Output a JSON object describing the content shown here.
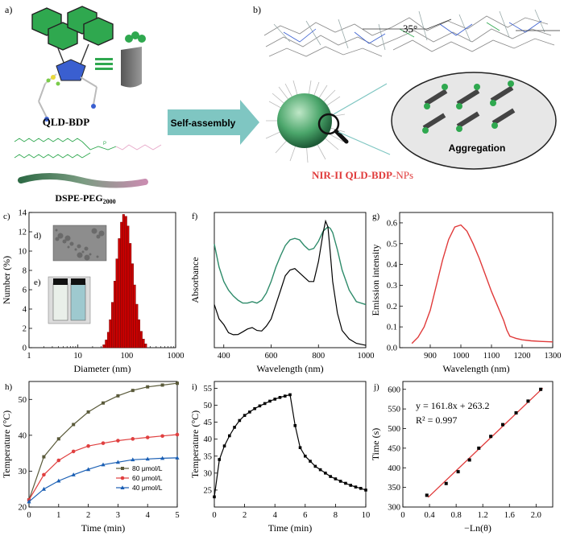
{
  "colors": {
    "dye_green": "#2fa84f",
    "peg_pink": "#e7a7c8",
    "arrow_teal": "#7fc6c2",
    "nir_red": "#e03a3a",
    "bar_red": "#cc0000",
    "abs_green": "#2e8b6a",
    "s80": "#5a5a3a",
    "s60": "#e04040",
    "s40": "#1a5fb4"
  },
  "scheme": {
    "panel_a": "a)",
    "panel_b": "b)",
    "molecule": "QLD-BDP",
    "lipid_main": "DSPE-PEG",
    "lipid_sub": "2000",
    "arrow_label": "Self-assembly",
    "angle_label": "35°",
    "aggregation_label": "Aggregation",
    "np_prefix": "NIR-II QLD-BDP",
    "np_suffix": "-NPs"
  },
  "chart_data": [
    {
      "id": "c",
      "panel": "c)",
      "type": "bar",
      "xscale": "log",
      "xlabel": "Diameter (nm)",
      "ylabel": "Number (%)",
      "xlim": [
        1,
        1000
      ],
      "ylim": [
        0,
        14
      ],
      "xticks": [
        1,
        10,
        100,
        1000
      ],
      "xtick_labels": [
        "1",
        "10",
        "100",
        "1000"
      ],
      "yticks": [
        0,
        2,
        4,
        6,
        8,
        10,
        12,
        14
      ],
      "ytick_labels": [
        "0",
        "2",
        "4",
        "6",
        "8",
        "10",
        "12",
        "14"
      ],
      "inset_tem": "d)",
      "inset_vials": "e)",
      "categories": [
        34,
        38,
        42,
        46,
        51,
        57,
        63,
        70,
        78,
        86,
        96,
        106,
        118,
        131,
        145,
        161,
        178,
        198,
        220,
        244
      ],
      "values": [
        0.3,
        0.8,
        1.6,
        2.9,
        4.7,
        6.9,
        9.2,
        11.3,
        13.0,
        13.8,
        13.6,
        12.6,
        10.8,
        8.7,
        6.5,
        4.5,
        2.9,
        1.7,
        0.9,
        0.4
      ]
    },
    {
      "id": "f",
      "panel": "f)",
      "type": "line",
      "xlabel": "Wavelength (nm)",
      "ylabel": "Absorbance",
      "xlim": [
        360,
        1000
      ],
      "ylim": [
        0,
        0.47
      ],
      "xticks": [
        400,
        600,
        800,
        1000
      ],
      "xtick_labels": [
        "400",
        "600",
        "800",
        "1000"
      ],
      "series": [
        {
          "name": "black",
          "x": [
            360,
            380,
            400,
            420,
            440,
            460,
            480,
            500,
            520,
            540,
            560,
            580,
            600,
            620,
            640,
            660,
            680,
            700,
            720,
            740,
            760,
            780,
            800,
            820,
            830,
            840,
            850,
            860,
            880,
            900,
            930,
            960,
            1000
          ],
          "y": [
            0.15,
            0.1,
            0.08,
            0.052,
            0.045,
            0.046,
            0.055,
            0.065,
            0.07,
            0.06,
            0.058,
            0.075,
            0.1,
            0.15,
            0.2,
            0.25,
            0.27,
            0.275,
            0.26,
            0.245,
            0.23,
            0.23,
            0.3,
            0.4,
            0.44,
            0.42,
            0.33,
            0.23,
            0.12,
            0.06,
            0.03,
            0.015,
            0.008
          ]
        },
        {
          "name": "green",
          "x": [
            360,
            380,
            400,
            420,
            440,
            460,
            480,
            500,
            520,
            540,
            560,
            580,
            600,
            620,
            640,
            660,
            680,
            700,
            720,
            740,
            760,
            780,
            800,
            820,
            840,
            850,
            860,
            880,
            900,
            930,
            960,
            1000
          ],
          "y": [
            0.36,
            0.28,
            0.23,
            0.2,
            0.18,
            0.165,
            0.155,
            0.155,
            0.16,
            0.155,
            0.165,
            0.19,
            0.23,
            0.28,
            0.32,
            0.355,
            0.375,
            0.38,
            0.375,
            0.355,
            0.34,
            0.345,
            0.37,
            0.405,
            0.42,
            0.415,
            0.4,
            0.34,
            0.27,
            0.2,
            0.16,
            0.15
          ]
        }
      ]
    },
    {
      "id": "g",
      "panel": "g)",
      "type": "line",
      "xlabel": "Wavelength (nm)",
      "ylabel": "Emission intensity",
      "xlim": [
        800,
        1300
      ],
      "ylim": [
        0,
        0.65
      ],
      "xticks": [
        900,
        1000,
        1100,
        1200,
        1300
      ],
      "xtick_labels": [
        "900",
        "1000",
        "1100",
        "1200",
        "1300"
      ],
      "yticks": [
        0.0,
        0.1,
        0.2,
        0.3,
        0.4,
        0.5,
        0.6
      ],
      "ytick_labels": [
        "0.0",
        "0.1",
        "0.2",
        "0.3",
        "0.4",
        "0.5",
        "0.6"
      ],
      "series": [
        {
          "name": "emission",
          "x": [
            840,
            860,
            880,
            900,
            920,
            940,
            960,
            980,
            1000,
            1020,
            1040,
            1060,
            1080,
            1100,
            1120,
            1140,
            1150,
            1160,
            1180,
            1200,
            1230,
            1260,
            1300
          ],
          "y": [
            0.02,
            0.05,
            0.1,
            0.18,
            0.3,
            0.42,
            0.52,
            0.58,
            0.59,
            0.56,
            0.5,
            0.43,
            0.35,
            0.27,
            0.2,
            0.13,
            0.085,
            0.055,
            0.045,
            0.038,
            0.033,
            0.03,
            0.028
          ]
        }
      ]
    },
    {
      "id": "h",
      "panel": "h)",
      "type": "line",
      "xlabel": "Time (min)",
      "ylabel": "Temperature (°C)",
      "xlim": [
        0,
        5
      ],
      "ylim": [
        20,
        55
      ],
      "xticks": [
        0,
        1,
        2,
        3,
        4,
        5
      ],
      "xtick_labels": [
        "0",
        "1",
        "2",
        "3",
        "4",
        "5"
      ],
      "yticks": [
        20,
        30,
        40,
        50
      ],
      "ytick_labels": [
        "20",
        "30",
        "40",
        "50"
      ],
      "legend": [
        "80 μmol/L",
        "60 μmol/L",
        "40 μmol/L"
      ],
      "series": [
        {
          "name": "80 μmol/L",
          "x": [
            0,
            0.5,
            1,
            1.5,
            2,
            2.5,
            3,
            3.5,
            4,
            4.5,
            5
          ],
          "y": [
            22,
            34,
            39,
            43,
            46.5,
            49,
            51,
            52.5,
            53.5,
            54,
            54.5
          ]
        },
        {
          "name": "60 μmol/L",
          "x": [
            0,
            0.5,
            1,
            1.5,
            2,
            2.5,
            3,
            3.5,
            4,
            4.5,
            5
          ],
          "y": [
            22,
            29,
            33,
            35.5,
            37,
            37.8,
            38.5,
            39,
            39.4,
            39.8,
            40.2
          ]
        },
        {
          "name": "40 μmol/L",
          "x": [
            0,
            0.5,
            1,
            1.5,
            2,
            2.5,
            3,
            3.5,
            4,
            4.5,
            5
          ],
          "y": [
            21.5,
            25,
            27.3,
            29,
            30.5,
            31.8,
            32.5,
            33.2,
            33.4,
            33.6,
            33.7
          ]
        }
      ]
    },
    {
      "id": "i",
      "panel": "i)",
      "type": "line",
      "xlabel": "Time (min)",
      "ylabel": "Temperature (°C)",
      "xlim": [
        0,
        10
      ],
      "ylim": [
        20,
        57
      ],
      "xticks": [
        0,
        2,
        4,
        6,
        8,
        10
      ],
      "xtick_labels": [
        "0",
        "2",
        "4",
        "6",
        "8",
        "10"
      ],
      "yticks": [
        25,
        30,
        35,
        40,
        45,
        50,
        55
      ],
      "ytick_labels": [
        "25",
        "30",
        "35",
        "40",
        "45",
        "50",
        "55"
      ],
      "series": [
        {
          "name": "cycle",
          "x": [
            0,
            0.333,
            0.667,
            1,
            1.333,
            1.667,
            2,
            2.333,
            2.667,
            3,
            3.333,
            3.667,
            4,
            4.333,
            4.667,
            5,
            5.333,
            5.667,
            6,
            6.333,
            6.667,
            7,
            7.333,
            7.667,
            8,
            8.333,
            8.667,
            9,
            9.333,
            9.667,
            10
          ],
          "y": [
            23,
            34,
            38,
            41,
            43.5,
            45.5,
            47,
            48,
            49,
            49.8,
            50.5,
            51.2,
            51.8,
            52.3,
            52.7,
            53.1,
            44,
            37.5,
            35,
            33.5,
            32,
            31,
            30,
            29,
            28.3,
            27.6,
            27,
            26.4,
            25.9,
            25.5,
            25
          ]
        }
      ]
    },
    {
      "id": "j",
      "panel": "j)",
      "type": "scatter",
      "xlabel": "−Ln(θ)",
      "ylabel": "Time (s)",
      "xlim": [
        0,
        2.25
      ],
      "ylim": [
        300,
        620
      ],
      "xticks": [
        0,
        0.4,
        0.8,
        1.2,
        1.6,
        2.0
      ],
      "xtick_labels": [
        "0",
        "0.4",
        "0.8",
        "1.2",
        "1.6",
        "2.0"
      ],
      "yticks": [
        300,
        350,
        400,
        450,
        500,
        550,
        600
      ],
      "ytick_labels": [
        "300",
        "350",
        "400",
        "450",
        "500",
        "550",
        "600"
      ],
      "equation": "y = 161.8x + 263.2",
      "r_squared": "R² = 0.997",
      "fit": {
        "slope": 161.8,
        "intercept": 263.2,
        "x_range": [
          0.38,
          2.1
        ]
      },
      "x": [
        0.36,
        0.65,
        0.83,
        1.0,
        1.14,
        1.32,
        1.5,
        1.7,
        1.88,
        2.07
      ],
      "y": [
        330,
        360,
        390,
        420,
        450,
        480,
        510,
        540,
        570,
        600
      ]
    }
  ]
}
